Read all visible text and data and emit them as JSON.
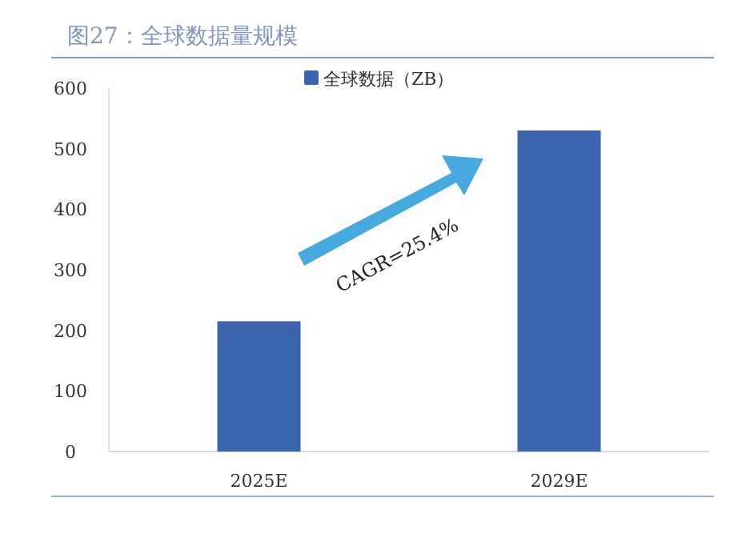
{
  "chart_data": {
    "type": "bar",
    "title": "图27：全球数据量规模",
    "categories": [
      "2025E",
      "2029E"
    ],
    "series": [
      {
        "name": "全球数据（ZB）",
        "color": "#3a64ae",
        "values": [
          215,
          530
        ]
      }
    ],
    "ylim": [
      0,
      600
    ],
    "yticks": [
      0,
      100,
      200,
      300,
      400,
      500,
      600
    ],
    "grid": false,
    "legend": "top",
    "annotations": [
      "CAGR=25.4%"
    ]
  }
}
